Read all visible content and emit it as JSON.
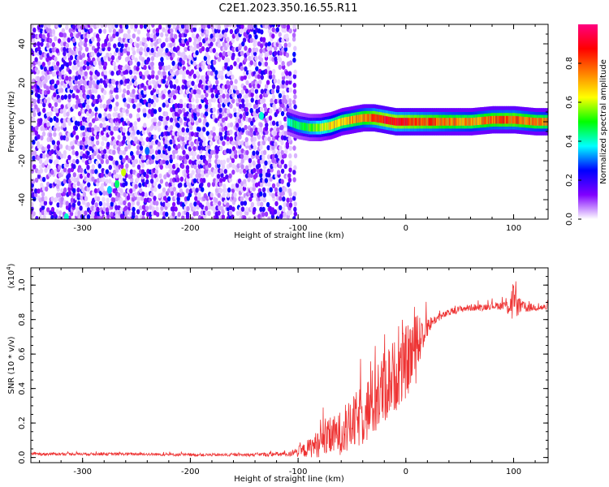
{
  "title": "C2E1.2023.350.16.55.R11",
  "chart_data": [
    {
      "type": "heatmap",
      "xlabel": "Height of straight line (km)",
      "ylabel": "Frequency (Hz)",
      "xlim": [
        -348,
        132
      ],
      "ylim": [
        -50,
        50
      ],
      "xticks": [
        -300,
        -200,
        -100,
        0,
        100
      ],
      "yticks": [
        -40,
        -20,
        0,
        20,
        40
      ],
      "colorbar": {
        "label": "Normalized spectral amplitude",
        "range": [
          0.0,
          1.0
        ],
        "ticks": [
          0.0,
          0.2,
          0.4,
          0.6,
          0.8
        ],
        "colormap": [
          "#ffffff",
          "#8000ff",
          "#0000ff",
          "#00ffff",
          "#00ff00",
          "#ffff00",
          "#ff8000",
          "#ff0000",
          "#ff0080"
        ]
      },
      "noise_region": {
        "x_range": [
          -348,
          -92
        ],
        "frequency_range": [
          -50,
          50
        ],
        "typical_amplitude": [
          0.0,
          0.2
        ]
      },
      "gap_region": {
        "x_range": [
          -108,
          -92
        ]
      },
      "signal_band": {
        "x": [
          -110,
          -100,
          -90,
          -80,
          -70,
          -60,
          -50,
          -40,
          -30,
          -20,
          -10,
          0,
          10,
          20,
          40,
          60,
          80,
          100,
          120,
          132
        ],
        "center_frequency": [
          0,
          -2,
          -3,
          -3,
          -2,
          0,
          1,
          2,
          2,
          1,
          0,
          0,
          0,
          0,
          0,
          0,
          1,
          1,
          0,
          0
        ],
        "amplitude": [
          0.45,
          0.5,
          0.55,
          0.62,
          0.7,
          0.75,
          0.78,
          0.82,
          0.9,
          0.95,
          0.95,
          0.93,
          0.9,
          0.88,
          0.82,
          0.78,
          0.85,
          0.88,
          0.8,
          0.78
        ]
      },
      "features": [
        {
          "x": -134,
          "frequency": 3,
          "amplitude": 0.4
        },
        {
          "x": -262,
          "frequency": -26,
          "amplitude": 0.6
        },
        {
          "x": -268,
          "frequency": -32,
          "amplitude": 0.45
        },
        {
          "x": -275,
          "frequency": -35,
          "amplitude": 0.35
        },
        {
          "x": -240,
          "frequency": -15,
          "amplitude": 0.3
        },
        {
          "x": -315,
          "frequency": -49,
          "amplitude": 0.4
        }
      ]
    },
    {
      "type": "line",
      "xlabel": "Height of straight line (km)",
      "ylabel": "SNR (10 * v/v)",
      "y_multiplier": "(x10",
      "y_multiplier_exp": "4",
      "y_multiplier_close": ")",
      "xlim": [
        -348,
        132
      ],
      "ylim": [
        -0.03,
        1.1
      ],
      "xticks": [
        -300,
        -200,
        -100,
        0,
        100
      ],
      "yticks": [
        0.0,
        0.2,
        0.4,
        0.6,
        0.8,
        1.0
      ],
      "color": "#ee3333",
      "series": [
        {
          "x": [
            -348,
            -300,
            -250,
            -200,
            -150,
            -110,
            -95,
            -85,
            -75,
            -65,
            -55,
            -45,
            -35,
            -25,
            -15,
            -5,
            5,
            10,
            15,
            20,
            25,
            30,
            40,
            50,
            60,
            70,
            80,
            90,
            95,
            100,
            105,
            110,
            120,
            132
          ],
          "values": [
            0.02,
            0.02,
            0.02,
            0.015,
            0.015,
            0.02,
            0.04,
            0.07,
            0.1,
            0.13,
            0.16,
            0.22,
            0.28,
            0.36,
            0.45,
            0.5,
            0.6,
            0.68,
            0.72,
            0.76,
            0.79,
            0.81,
            0.84,
            0.86,
            0.87,
            0.87,
            0.88,
            0.88,
            0.89,
            0.9,
            0.88,
            0.87,
            0.87,
            0.87
          ],
          "noise": [
            0.008,
            0.008,
            0.008,
            0.008,
            0.008,
            0.015,
            0.04,
            0.07,
            0.1,
            0.12,
            0.14,
            0.17,
            0.2,
            0.22,
            0.22,
            0.2,
            0.22,
            0.25,
            0.12,
            0.06,
            0.03,
            0.02,
            0.02,
            0.02,
            0.02,
            0.02,
            0.02,
            0.025,
            0.07,
            0.12,
            0.05,
            0.03,
            0.02,
            0.02
          ]
        }
      ]
    }
  ]
}
